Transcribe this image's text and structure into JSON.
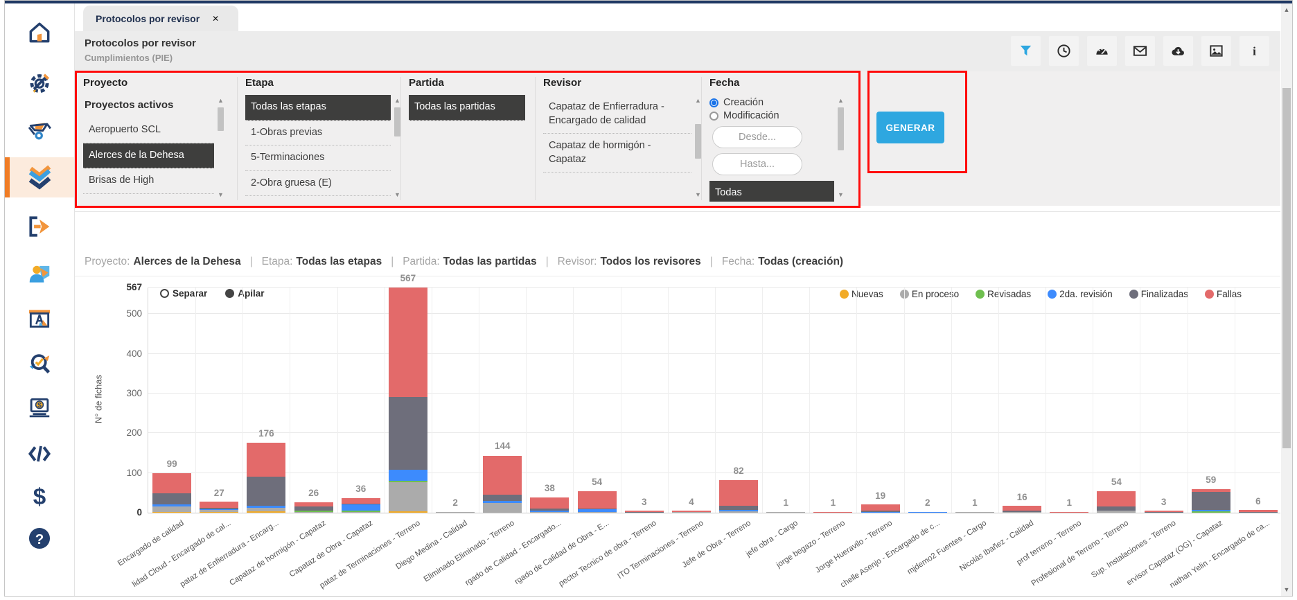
{
  "tab": {
    "title": "Protocolos por revisor",
    "close_glyph": "✕"
  },
  "header": {
    "title": "Protocolos por revisor",
    "subtitle": "Cumplimientos (PIE)",
    "toolbar_icons": [
      "filter",
      "history",
      "gauge",
      "mail",
      "cloud-download",
      "image",
      "info"
    ]
  },
  "sidebar_icons": [
    "home",
    "settings",
    "wheelbarrow",
    "protocols",
    "export",
    "users",
    "planning",
    "inspect",
    "payments",
    "code",
    "billing",
    "help"
  ],
  "filters": {
    "proyecto": {
      "label": "Proyecto",
      "group_header": "Proyectos activos",
      "items": [
        "Aeropuerto SCL",
        "Alerces de la Dehesa",
        "Brisas de High"
      ],
      "selected": "Alerces de la Dehesa"
    },
    "etapa": {
      "label": "Etapa",
      "items": [
        "Todas las etapas",
        "1-Obras previas",
        "5-Terminaciones",
        "2-Obra gruesa (E)"
      ],
      "selected": "Todas las etapas"
    },
    "partida": {
      "label": "Partida",
      "items": [
        "Todas las partidas"
      ],
      "selected": "Todas las partidas"
    },
    "revisor": {
      "label": "Revisor",
      "items": [
        "Capataz de Enfierradura - Encargado de calidad",
        "Capataz de hormigón - Capataz"
      ],
      "selected": ""
    },
    "fecha": {
      "label": "Fecha",
      "radios": [
        {
          "label": "Creación",
          "checked": true
        },
        {
          "label": "Modificación",
          "checked": false
        }
      ],
      "desde_label": "Desde...",
      "hasta_label": "Hasta...",
      "items": [
        "Todas"
      ],
      "selected": "Todas"
    }
  },
  "generate_button": "GENERAR",
  "summary_separator": "|",
  "summary": [
    {
      "label": "Proyecto:",
      "value": "Alerces de la Dehesa"
    },
    {
      "label": "Etapa:",
      "value": "Todas las etapas"
    },
    {
      "label": "Partida:",
      "value": "Todas las partidas"
    },
    {
      "label": "Revisor:",
      "value": "Todos los revisores"
    },
    {
      "label": "Fecha:",
      "value": "Todas (creación)"
    }
  ],
  "colors": {
    "accent_blue": "#2ea7e0",
    "annotation_red": "#ff0b0b",
    "sidebar_active_orange": "#f07d26",
    "selected_item_bg": "#3e3e3d",
    "navy_topline": "#1f3864"
  },
  "chart_data": {
    "type": "bar",
    "stacked": true,
    "mode_options": [
      "Separar",
      "Apilar"
    ],
    "mode_selected": "Apilar",
    "ylabel": "N° de fichas",
    "ylim": [
      0,
      567
    ],
    "yticks": [
      0,
      100,
      200,
      300,
      400,
      500,
      567
    ],
    "grid": true,
    "legend_position": "top-right",
    "categories": [
      "Encargado de calidad",
      "lidad Cloud - Encargado de cal...",
      "pataz de Enfierradura - Encarg...",
      "Capataz de hormigón - Capataz",
      "Capataz de Obra - Capataz",
      "pataz de Terminaciones - Terreno",
      "Diego Medina - Calidad",
      "Eliminado Eliminado - Terreno",
      "rgado de Calidad - Encargado...",
      "rgado de Calidad de Obra - E...",
      "pector Tecnico de obra - Terreno",
      "ITO Terminaciones - Terreno",
      "Jefe de Obra - Terreno",
      "jefe obra - Cargo",
      "jorge begazo - Terreno",
      "Jorge Hueravilo - Terreno",
      "chelle Asenjo - Encargado de c...",
      "mjdemo2 Fuentes - Cargo",
      "Nicolás Ibañez - Calidad",
      "prof terreno - Terreno",
      "Profesional de Terreno - Terreno",
      "Sup. Instalaciones - Terreno",
      "ervisor Capataz (OG) - Capataz",
      "nathan Yelin - Encargado de ca..."
    ],
    "totals": [
      99,
      27,
      176,
      26,
      36,
      567,
      2,
      144,
      38,
      54,
      3,
      4,
      82,
      1,
      1,
      19,
      2,
      1,
      16,
      1,
      54,
      3,
      59,
      6
    ],
    "series": [
      {
        "name": "Nuevas",
        "color": "#f2ab27",
        "values": [
          2,
          2,
          4,
          0,
          0,
          4,
          0,
          0,
          0,
          0,
          0,
          0,
          0,
          0,
          0,
          0,
          0,
          0,
          0,
          0,
          0,
          0,
          0,
          0
        ]
      },
      {
        "name": "En proceso",
        "color": "#ababab",
        "values": [
          13,
          4,
          8,
          2,
          2,
          72,
          2,
          25,
          2,
          2,
          0,
          1,
          4,
          1,
          0,
          0,
          0,
          1,
          1,
          0,
          6,
          0,
          0,
          0
        ]
      },
      {
        "name": "Revisadas",
        "color": "#6fbf4f",
        "values": [
          0,
          0,
          0,
          2,
          3,
          4,
          0,
          0,
          0,
          0,
          0,
          0,
          0,
          0,
          0,
          0,
          0,
          0,
          0,
          0,
          0,
          0,
          3,
          0
        ]
      },
      {
        "name": "2da. revisión",
        "color": "#3d8bfd",
        "values": [
          5,
          3,
          6,
          0,
          15,
          28,
          0,
          4,
          2,
          6,
          0,
          0,
          2,
          0,
          0,
          1,
          2,
          0,
          0,
          0,
          0,
          0,
          4,
          0
        ]
      },
      {
        "name": "Finalizadas",
        "color": "#6e6e7b",
        "values": [
          28,
          2,
          72,
          11,
          2,
          184,
          0,
          16,
          6,
          2,
          1,
          0,
          12,
          0,
          0,
          3,
          0,
          0,
          3,
          0,
          10,
          1,
          45,
          1
        ]
      },
      {
        "name": "Fallas",
        "color": "#e36a6a",
        "values": [
          51,
          16,
          86,
          11,
          14,
          275,
          0,
          99,
          28,
          44,
          2,
          3,
          64,
          0,
          1,
          15,
          0,
          0,
          12,
          1,
          38,
          2,
          7,
          5
        ]
      }
    ]
  }
}
